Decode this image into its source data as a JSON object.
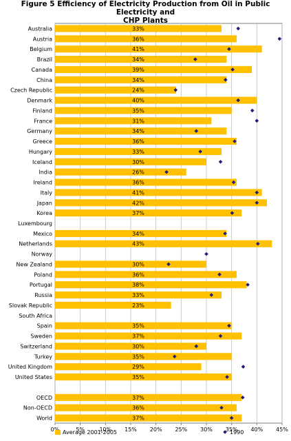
{
  "title_line1": "Figure 5  Efficiency of Electricity Production from Oil in Public Electricity and",
  "title_line2": "CHP Plants",
  "chart_data": {
    "type": "bar",
    "orientation": "horizontal",
    "xlim": [
      0,
      45
    ],
    "x_ticks": [
      "0%",
      "5%",
      "10%",
      "15%",
      "20%",
      "25%",
      "30%",
      "35%",
      "40%",
      "45%"
    ],
    "grid": true,
    "legend_position": "bottom",
    "colors": {
      "bar": "#FFC000",
      "marker": "#1F1F7A",
      "grid": "#BFBFBF"
    },
    "categories": [
      "Australia",
      "Austria",
      "Belgium",
      "Brazil",
      "Canada",
      "China",
      "Czech Republic",
      "Denmark",
      "Finland",
      "France",
      "Germany",
      "Greece",
      "Hungary",
      "Iceland",
      "India",
      "Ireland",
      "Italy",
      "Japan",
      "Korea",
      "Luxembourg",
      "Mexico",
      "Netherlands",
      "Norway",
      "New Zealand",
      "Poland",
      "Portugal",
      "Russia",
      "Slovak Republic",
      "South Africa",
      "Spain",
      "Sweden",
      "Switzerland",
      "Turkey",
      "United Kingdom",
      "United States",
      "",
      "OECD",
      "Non-OECD",
      "World"
    ],
    "series": [
      {
        "name": "Average 2001-2005",
        "type": "bar",
        "values": [
          33,
          36,
          41,
          34,
          39,
          34,
          24,
          40,
          35,
          31,
          34,
          36,
          33,
          30,
          26,
          36,
          41,
          42,
          37,
          null,
          34,
          43,
          null,
          30,
          36,
          38,
          33,
          23,
          null,
          35,
          37,
          30,
          35,
          29,
          35,
          null,
          37,
          36,
          37
        ],
        "labels": [
          "33%",
          "36%",
          "41%",
          "34%",
          "39%",
          "34%",
          "24%",
          "40%",
          "35%",
          "31%",
          "34%",
          "36%",
          "33%",
          "30%",
          "26%",
          "36%",
          "41%",
          "42%",
          "37%",
          "",
          "34%",
          "43%",
          "",
          "30%",
          "36%",
          "38%",
          "33%",
          "23%",
          "",
          "35%",
          "37%",
          "30%",
          "35%",
          "29%",
          "35%",
          "",
          "37%",
          "36%",
          "37%"
        ]
      },
      {
        "name": "1990",
        "type": "scatter",
        "values": [
          36.3,
          44.5,
          34.5,
          27.8,
          35.2,
          33.8,
          23.9,
          36.3,
          39.1,
          40,
          28,
          35.6,
          28.8,
          32.8,
          22.1,
          35.4,
          40,
          40,
          35.1,
          null,
          33.7,
          40.2,
          30,
          22.5,
          32.6,
          38.2,
          31,
          null,
          null,
          34.5,
          32.8,
          28,
          23.7,
          37.3,
          34.1,
          null,
          37.2,
          33,
          35
        ]
      }
    ]
  }
}
